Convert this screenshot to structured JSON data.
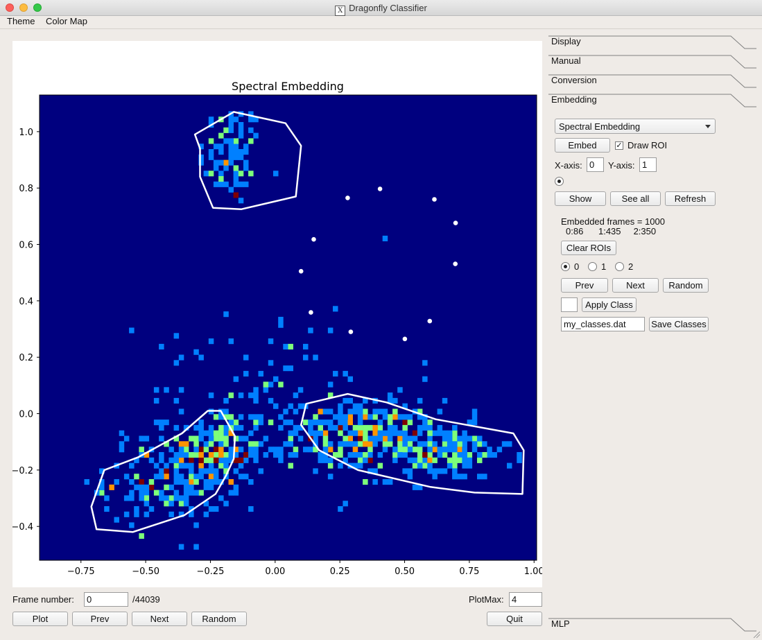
{
  "window": {
    "title": "Dragonfly Classifier"
  },
  "menu": [
    "Theme",
    "Color Map"
  ],
  "plot": {
    "bottom": {
      "frame_label": "Frame number:",
      "frame_value": "0",
      "frame_total": "/44039",
      "plotmax_label": "PlotMax:",
      "plotmax_value": "4",
      "plot_button": "Plot",
      "prev_button": "Prev",
      "next_button": "Next",
      "random_button": "Random",
      "quit_button": "Quit"
    }
  },
  "tabs": [
    "Display",
    "Manual",
    "Conversion",
    "Embedding",
    "MLP"
  ],
  "embedding": {
    "method": "Spectral Embedding",
    "embed_button": "Embed",
    "draw_roi_label": "Draw ROI",
    "draw_roi_checked": true,
    "xaxis_label": "X-axis:",
    "xaxis_value": "0",
    "yaxis_label": "Y-axis:",
    "yaxis_value": "1",
    "show_button": "Show",
    "see_all_button": "See all",
    "refresh_button": "Refresh",
    "frames_info": "Embedded frames = 1000",
    "class_counts": "0:86      1:435     2:350",
    "clear_rois_button": "Clear ROIs",
    "class_radios": [
      "0",
      "1",
      "2"
    ],
    "selected_class": "0",
    "prev_button": "Prev",
    "next_button": "Next",
    "random_button": "Random",
    "apply_class_button": "Apply Class",
    "classes_file": "my_classes.dat",
    "save_classes_button": "Save Classes"
  },
  "chart_data": {
    "type": "heatmap",
    "title": "Spectral Embedding",
    "xlabel": "",
    "ylabel": "",
    "xlim": [
      -0.91,
      1.01
    ],
    "ylim": [
      -0.52,
      1.13
    ],
    "xticks": [
      -0.75,
      -0.5,
      -0.25,
      0.0,
      0.25,
      0.5,
      0.75,
      1.0
    ],
    "xtick_labels": [
      "−0.75",
      "−0.50",
      "−0.25",
      "0.00",
      "0.25",
      "0.50",
      "0.75",
      "1.00"
    ],
    "yticks": [
      -0.4,
      -0.2,
      0.0,
      0.2,
      0.4,
      0.6,
      0.8,
      1.0
    ],
    "ytick_labels": [
      "−0.4",
      "−0.2",
      "0.0",
      "0.2",
      "0.4",
      "0.6",
      "0.8",
      "1.0"
    ],
    "colormap": "jet",
    "background_color": "#00007f",
    "clusters": [
      {
        "cx": -0.17,
        "cy": 0.92,
        "sx": 0.06,
        "sy": 0.09,
        "n": 85
      },
      {
        "cx": -0.22,
        "cy": -0.13,
        "sx": 0.09,
        "sy": 0.08,
        "n": 190
      },
      {
        "cx": -0.42,
        "cy": -0.24,
        "sx": 0.12,
        "sy": 0.08,
        "n": 160
      },
      {
        "cx": 0.35,
        "cy": -0.08,
        "sx": 0.14,
        "sy": 0.06,
        "n": 260
      },
      {
        "cx": 0.65,
        "cy": -0.14,
        "sx": 0.13,
        "sy": 0.05,
        "n": 140
      },
      {
        "cx": 0.02,
        "cy": 0.08,
        "sx": 0.25,
        "sy": 0.16,
        "n": 110
      }
    ],
    "markers": [
      [
        0.28,
        0.765
      ],
      [
        0.405,
        0.797
      ],
      [
        0.615,
        0.76
      ],
      [
        0.697,
        0.676
      ],
      [
        0.696,
        0.531
      ],
      [
        0.149,
        0.618
      ],
      [
        0.1,
        0.505
      ],
      [
        0.138,
        0.359
      ],
      [
        0.292,
        0.29
      ],
      [
        0.501,
        0.265
      ],
      [
        0.597,
        0.328
      ]
    ],
    "rois": [
      [
        [
          -0.31,
          0.99
        ],
        [
          -0.16,
          1.07
        ],
        [
          -0.06,
          1.05
        ],
        [
          0.04,
          1.03
        ],
        [
          0.1,
          0.95
        ],
        [
          0.08,
          0.77
        ],
        [
          -0.13,
          0.725
        ],
        [
          -0.24,
          0.73
        ],
        [
          -0.29,
          0.84
        ],
        [
          -0.29,
          0.94
        ]
      ],
      [
        [
          -0.66,
          -0.2
        ],
        [
          -0.53,
          -0.155
        ],
        [
          -0.36,
          -0.07
        ],
        [
          -0.26,
          0.01
        ],
        [
          -0.21,
          0.01
        ],
        [
          -0.155,
          -0.08
        ],
        [
          -0.16,
          -0.16
        ],
        [
          -0.19,
          -0.22
        ],
        [
          -0.23,
          -0.285
        ],
        [
          -0.35,
          -0.36
        ],
        [
          -0.55,
          -0.42
        ],
        [
          -0.69,
          -0.41
        ],
        [
          -0.71,
          -0.33
        ]
      ],
      [
        [
          0.12,
          0.035
        ],
        [
          0.28,
          0.07
        ],
        [
          0.43,
          0.04
        ],
        [
          0.62,
          -0.02
        ],
        [
          0.92,
          -0.07
        ],
        [
          0.96,
          -0.13
        ],
        [
          0.955,
          -0.285
        ],
        [
          0.77,
          -0.28
        ],
        [
          0.6,
          -0.26
        ],
        [
          0.32,
          -0.2
        ],
        [
          0.17,
          -0.13
        ],
        [
          0.1,
          -0.04
        ]
      ]
    ]
  }
}
